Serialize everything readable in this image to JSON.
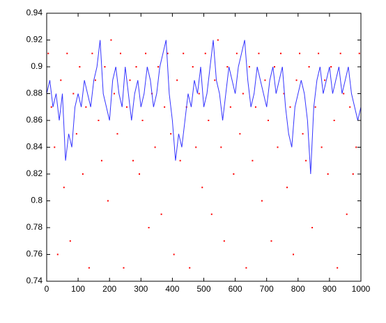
{
  "chart_data": {
    "type": "line_scatter",
    "xlim": [
      0,
      1000
    ],
    "xticks": [
      0,
      100,
      200,
      300,
      400,
      500,
      600,
      700,
      800,
      900,
      1000
    ],
    "ylim": [
      0.74,
      0.94
    ],
    "yticks": [
      0.74,
      0.76,
      0.78,
      0.8,
      0.82,
      0.84,
      0.86,
      0.88,
      0.9,
      0.92,
      0.94
    ],
    "series": [
      {
        "kind": "scatter",
        "color": "#ff0000",
        "x": [
          5,
          15,
          25,
          35,
          45,
          55,
          65,
          75,
          85,
          95,
          105,
          115,
          125,
          135,
          145,
          155,
          165,
          175,
          185,
          195,
          205,
          215,
          225,
          235,
          245,
          255,
          265,
          275,
          285,
          295,
          305,
          315,
          325,
          335,
          345,
          355,
          365,
          375,
          385,
          395,
          405,
          415,
          425,
          435,
          445,
          455,
          465,
          475,
          485,
          495,
          505,
          515,
          525,
          535,
          545,
          555,
          565,
          575,
          585,
          595,
          605,
          615,
          625,
          635,
          645,
          655,
          665,
          675,
          685,
          695,
          705,
          715,
          725,
          735,
          745,
          755,
          765,
          775,
          785,
          795,
          805,
          815,
          825,
          835,
          845,
          855,
          865,
          875,
          885,
          895,
          905,
          915,
          925,
          935,
          945,
          955,
          965,
          975,
          985,
          995
        ],
        "values": [
          0.91,
          0.87,
          0.84,
          0.76,
          0.89,
          0.81,
          0.91,
          0.77,
          0.88,
          0.85,
          0.9,
          0.82,
          0.87,
          0.75,
          0.91,
          0.89,
          0.86,
          0.83,
          0.9,
          0.8,
          0.92,
          0.88,
          0.85,
          0.91,
          0.75,
          0.87,
          0.89,
          0.83,
          0.9,
          0.82,
          0.86,
          0.91,
          0.78,
          0.88,
          0.84,
          0.9,
          0.79,
          0.87,
          0.91,
          0.85,
          0.76,
          0.89,
          0.83,
          0.91,
          0.87,
          0.75,
          0.9,
          0.84,
          0.88,
          0.81,
          0.91,
          0.86,
          0.79,
          0.89,
          0.92,
          0.84,
          0.77,
          0.9,
          0.87,
          0.82,
          0.91,
          0.85,
          0.88,
          0.75,
          0.9,
          0.83,
          0.87,
          0.91,
          0.8,
          0.89,
          0.86,
          0.77,
          0.9,
          0.84,
          0.91,
          0.88,
          0.81,
          0.87,
          0.76,
          0.89,
          0.91,
          0.85,
          0.83,
          0.9,
          0.78,
          0.87,
          0.91,
          0.84,
          0.89,
          0.82,
          0.9,
          0.86,
          0.75,
          0.91,
          0.88,
          0.79,
          0.87,
          0.82,
          0.84,
          0.91
        ]
      },
      {
        "kind": "line",
        "color": "#3333ff",
        "x": [
          0,
          10,
          20,
          30,
          40,
          50,
          60,
          70,
          80,
          90,
          100,
          110,
          120,
          130,
          140,
          150,
          160,
          170,
          180,
          190,
          200,
          210,
          220,
          230,
          240,
          250,
          260,
          270,
          280,
          290,
          300,
          310,
          320,
          330,
          340,
          350,
          360,
          370,
          380,
          390,
          400,
          410,
          420,
          430,
          440,
          450,
          460,
          470,
          480,
          490,
          500,
          510,
          520,
          530,
          540,
          550,
          560,
          570,
          580,
          590,
          600,
          610,
          620,
          630,
          640,
          650,
          660,
          670,
          680,
          690,
          700,
          710,
          720,
          730,
          740,
          750,
          760,
          770,
          780,
          790,
          800,
          810,
          820,
          830,
          840,
          850,
          860,
          870,
          880,
          890,
          900,
          910,
          920,
          930,
          940,
          950,
          960,
          970,
          980,
          990,
          1000
        ],
        "values": [
          0.88,
          0.89,
          0.87,
          0.88,
          0.86,
          0.88,
          0.83,
          0.85,
          0.84,
          0.87,
          0.88,
          0.87,
          0.89,
          0.88,
          0.87,
          0.89,
          0.9,
          0.92,
          0.88,
          0.87,
          0.86,
          0.89,
          0.9,
          0.88,
          0.87,
          0.9,
          0.88,
          0.86,
          0.88,
          0.89,
          0.87,
          0.88,
          0.9,
          0.89,
          0.87,
          0.88,
          0.9,
          0.91,
          0.92,
          0.88,
          0.86,
          0.83,
          0.85,
          0.84,
          0.86,
          0.88,
          0.87,
          0.89,
          0.88,
          0.9,
          0.87,
          0.88,
          0.9,
          0.92,
          0.89,
          0.88,
          0.86,
          0.88,
          0.9,
          0.89,
          0.88,
          0.9,
          0.91,
          0.92,
          0.89,
          0.87,
          0.88,
          0.9,
          0.89,
          0.88,
          0.87,
          0.89,
          0.9,
          0.88,
          0.89,
          0.9,
          0.87,
          0.85,
          0.84,
          0.87,
          0.88,
          0.89,
          0.88,
          0.86,
          0.82,
          0.87,
          0.89,
          0.9,
          0.88,
          0.89,
          0.9,
          0.88,
          0.89,
          0.9,
          0.88,
          0.89,
          0.9,
          0.88,
          0.87,
          0.86,
          0.87
        ]
      }
    ]
  }
}
